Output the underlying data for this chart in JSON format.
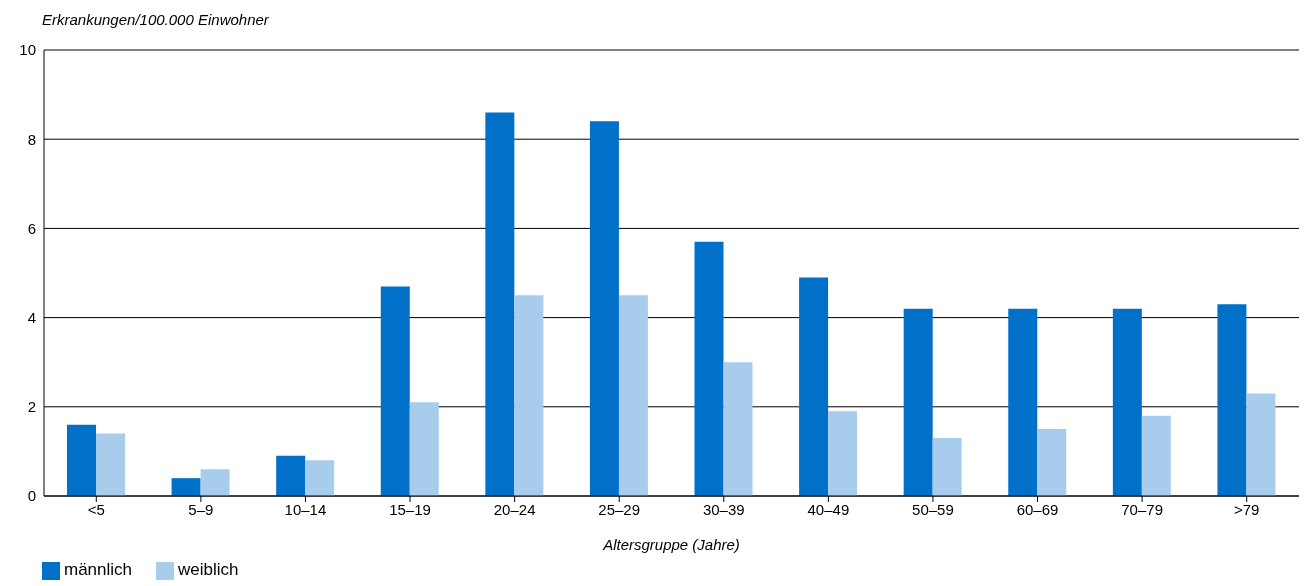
{
  "chart_data": {
    "type": "bar",
    "ylabel": "Erkrankungen/100.000 Einwohner",
    "xlabel": "Altersgruppe (Jahre)",
    "categories": [
      "<5",
      "5–9",
      "10–14",
      "15–19",
      "20–24",
      "25–29",
      "30–39",
      "40–49",
      "50–59",
      "60–69",
      "70–79",
      ">79"
    ],
    "series": [
      {
        "name": "männlich",
        "color": "#0070c8",
        "values": [
          1.6,
          0.4,
          0.9,
          4.7,
          8.6,
          8.4,
          5.7,
          4.9,
          4.2,
          4.2,
          4.2,
          4.3
        ]
      },
      {
        "name": "weiblich",
        "color": "#a8cdec",
        "values": [
          1.4,
          0.6,
          0.8,
          2.1,
          4.5,
          4.5,
          3.0,
          1.9,
          1.3,
          1.5,
          1.8,
          2.3
        ]
      }
    ],
    "ylim": [
      0,
      10
    ],
    "yticks": [
      0,
      2,
      4,
      6,
      8,
      10
    ],
    "grid": "y",
    "legend": "bottom left"
  }
}
